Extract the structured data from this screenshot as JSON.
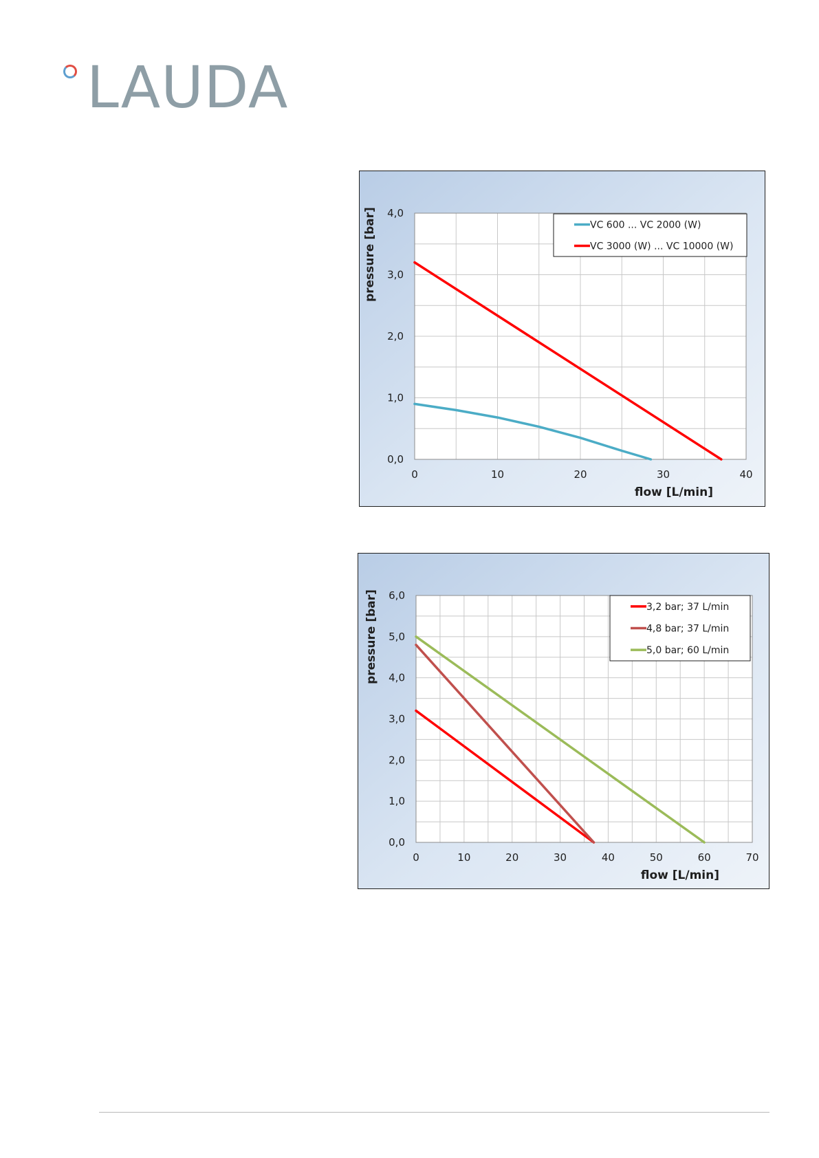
{
  "logo": {
    "text": "LAUDA"
  },
  "chart_data": [
    {
      "type": "line",
      "xlabel": "flow [L/min]",
      "ylabel": "pressure [bar]",
      "xlim": [
        0,
        40
      ],
      "ylim": [
        0,
        4
      ],
      "x_ticks": [
        "0",
        "10",
        "20",
        "30",
        "40"
      ],
      "y_ticks": [
        "0,0",
        "1,0",
        "2,0",
        "3,0",
        "4,0"
      ],
      "x_minor_step": 5,
      "y_minor_step": 0.5,
      "grid": true,
      "legend": "top-right",
      "series": [
        {
          "name": "VC 600 ... VC 2000 (W)",
          "color": "#4bacc6",
          "x": [
            0,
            5,
            10,
            15,
            20,
            25,
            28.5
          ],
          "y": [
            0.9,
            0.8,
            0.68,
            0.53,
            0.35,
            0.14,
            0.0
          ]
        },
        {
          "name": "VC 3000 (W) ... VC 10000 (W)",
          "color": "#ff0000",
          "x": [
            0,
            37
          ],
          "y": [
            3.2,
            0.0
          ]
        }
      ]
    },
    {
      "type": "line",
      "xlabel": "flow [L/min]",
      "ylabel": "pressure [bar]",
      "xlim": [
        0,
        70
      ],
      "ylim": [
        0,
        6
      ],
      "x_ticks": [
        "0",
        "10",
        "20",
        "30",
        "40",
        "50",
        "60",
        "70"
      ],
      "y_ticks": [
        "0,0",
        "1,0",
        "2,0",
        "3,0",
        "4,0",
        "5,0",
        "6,0"
      ],
      "x_minor_step": 5,
      "y_minor_step": 0.5,
      "grid": true,
      "legend": "top-right",
      "series": [
        {
          "name": "3,2 bar; 37 L/min",
          "color": "#ff0000",
          "x": [
            0,
            37
          ],
          "y": [
            3.2,
            0.0
          ]
        },
        {
          "name": "4,8 bar; 37 L/min",
          "color": "#c0504d",
          "x": [
            0,
            37
          ],
          "y": [
            4.8,
            0.0
          ]
        },
        {
          "name": "5,0 bar; 60 L/min",
          "color": "#9bbb59",
          "x": [
            0,
            60
          ],
          "y": [
            5.0,
            0.0
          ]
        }
      ]
    }
  ]
}
